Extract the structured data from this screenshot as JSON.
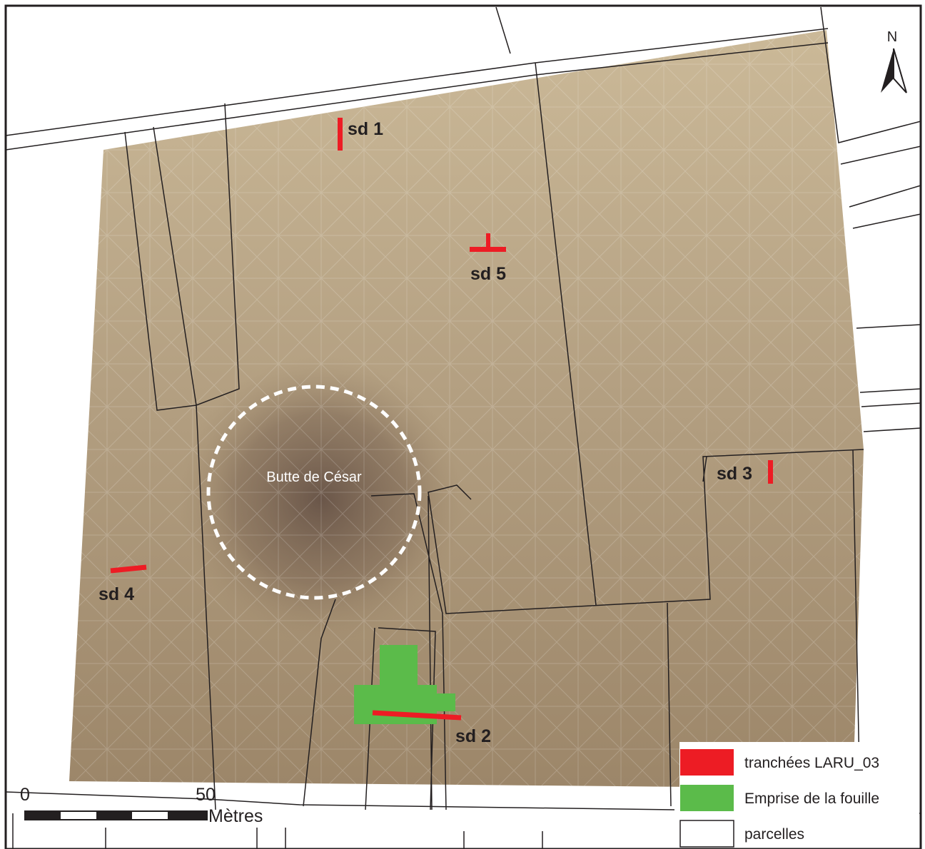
{
  "trenches": [
    "sd 1",
    "sd 2",
    "sd 3",
    "sd 4",
    "sd 5"
  ],
  "landmark": "Butte de César",
  "north_label": "N",
  "scale_bar": {
    "ticks": [
      0,
      50
    ],
    "unit": "Mètres"
  },
  "legend": [
    "tranchées LARU_03",
    "Emprise de la fouille",
    "parcelles"
  ]
}
